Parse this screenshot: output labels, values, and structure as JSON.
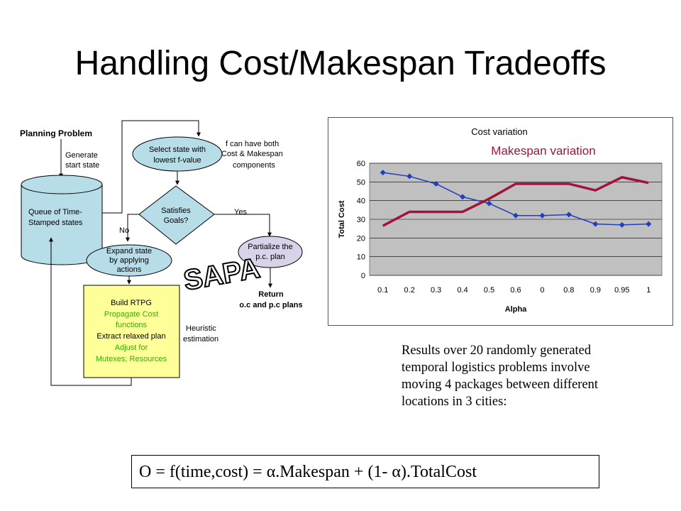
{
  "title": "Handling Cost/Makespan Tradeoffs",
  "flowchart": {
    "planning_problem": "Planning Problem",
    "generate_line1": "Generate",
    "generate_line2": "start state",
    "queue_line1": "Queue of Time-",
    "queue_line2": "Stamped states",
    "select_line1": "Select state with",
    "select_line2": "lowest f-value",
    "f_note_line1": "f can have both",
    "f_note_line2": "Cost & Makespan",
    "f_note_line3": "components",
    "satisfies_line1": "Satisfies",
    "satisfies_line2": "Goals?",
    "yes_label": "Yes",
    "no_label": "No",
    "expand_line1": "Expand state",
    "expand_line2": "by applying",
    "expand_line3": "actions",
    "partialize_line1": "Partialize the",
    "partialize_line2": "p.c. plan",
    "return_line1": "Return",
    "return_line2": "o.c and p.c plans",
    "sapa_logo": "SAPA",
    "rtpg_line1": "Build RTPG",
    "rtpg_line2": "Propagate Cost",
    "rtpg_line3": "functions",
    "rtpg_line4": "Extract relaxed plan",
    "rtpg_line5": "Adjust for",
    "rtpg_line6": "Mutexes; Resources",
    "heuristic_line1": "Heuristic",
    "heuristic_line2": "estimation",
    "colors": {
      "ellipse_fill": "#b7dde8",
      "rtpg_fill": "#ffff99",
      "partialize_fill": "#d9d2e9",
      "green_text": "#2db300"
    }
  },
  "chart_data": {
    "type": "line",
    "title": "Cost variation",
    "subtitle": "Makespan variation",
    "xlabel": "Alpha",
    "ylabel": "Total Cost",
    "categories": [
      "0.1",
      "0.2",
      "0.3",
      "0.4",
      "0.5",
      "0.6",
      "0",
      "0.8",
      "0.9",
      "0.95",
      "1"
    ],
    "ylim": [
      0,
      60
    ],
    "yticks": [
      0,
      10,
      20,
      30,
      40,
      50,
      60
    ],
    "grid": true,
    "series": [
      {
        "values": [
          55,
          53,
          49,
          42,
          38.5,
          32,
          32,
          32.5,
          27.5,
          27,
          27.5
        ],
        "color": "#1f3fbf",
        "markers": true
      },
      {
        "values": [
          26.5,
          34,
          34,
          34,
          41,
          49,
          49,
          49,
          45.5,
          52.5,
          49.5
        ],
        "color": "#a0143c",
        "markers": false
      }
    ],
    "colors": {
      "plot_bg": "#c0c0c0",
      "title_color": "#000000",
      "subtitle_color": "#a0143c"
    }
  },
  "notes": {
    "line1": "Results over 20 randomly generated",
    "line2": "temporal logistics problems involve",
    "line3": "moving 4 packages between different",
    "line4": "locations in 3 cities:"
  },
  "formula": "O = f(time,cost) = α.Makespan + (1- α).TotalCost"
}
